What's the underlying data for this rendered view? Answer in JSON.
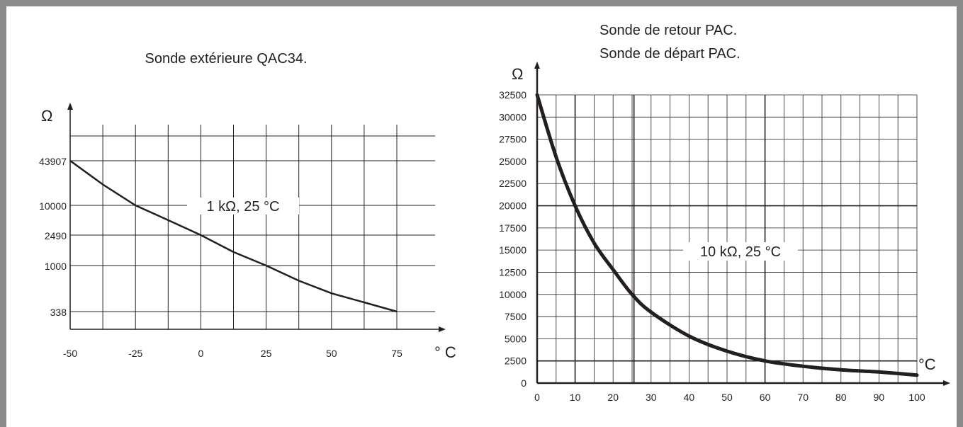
{
  "chart_data": [
    {
      "type": "line",
      "title": "Sonde extérieure QAC34.",
      "ylabel": "Ω",
      "xlabel": "° C",
      "annotation": "1 kΩ, 25 °C",
      "x_ticks": [
        "-50",
        "-25",
        "0",
        "25",
        "50",
        "75"
      ],
      "y_ticks": [
        "43907",
        "10000",
        "2490",
        "1000",
        "338"
      ],
      "series": [
        {
          "x": [
            -50,
            -37.5,
            -25,
            -12.5,
            0,
            12.5,
            25,
            37.5,
            50,
            62.5,
            75
          ],
          "y": [
            43907,
            20000,
            10000,
            5000,
            2490,
            1500,
            1000,
            700,
            520,
            420,
            338
          ]
        }
      ]
    },
    {
      "type": "line",
      "title": "Sonde de retour PAC.",
      "subtitle": "Sonde de départ PAC.",
      "ylabel": "Ω",
      "xlabel": "°C",
      "annotation": "10 kΩ, 25 °C",
      "xlim": [
        0,
        100
      ],
      "ylim": [
        0,
        32500
      ],
      "x_ticks": [
        "0",
        "10",
        "20",
        "30",
        "40",
        "50",
        "60",
        "70",
        "80",
        "90",
        "100"
      ],
      "y_ticks": [
        "0",
        "2500",
        "5000",
        "7500",
        "10000",
        "12500",
        "15000",
        "17500",
        "20000",
        "22500",
        "25000",
        "27500",
        "30000",
        "32500"
      ],
      "series": [
        {
          "x": [
            0,
            5,
            10,
            15,
            20,
            25,
            30,
            40,
            50,
            60,
            70,
            80,
            90,
            100
          ],
          "y": [
            32500,
            25500,
            20000,
            15800,
            12800,
            10000,
            8000,
            5300,
            3600,
            2500,
            1900,
            1500,
            1250,
            900
          ]
        }
      ]
    }
  ]
}
